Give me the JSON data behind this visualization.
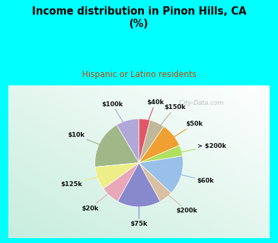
{
  "title": "Income distribution in Pinon Hills, CA\n(%)",
  "subtitle": "Hispanic or Latino residents",
  "background_cyan": "#00FFFF",
  "background_chart_color": "#c8eee0",
  "labels": [
    "$100k",
    "$10k",
    "$125k",
    "$20k",
    "$75k",
    "$200k",
    "$60k",
    "> $200k",
    "$50k",
    "$150k",
    "$40k"
  ],
  "values": [
    8.5,
    18.0,
    8.5,
    7.0,
    16.0,
    5.0,
    14.5,
    4.0,
    9.0,
    5.5,
    4.0
  ],
  "colors": [
    "#b0a8d8",
    "#a0b888",
    "#eeee88",
    "#e8a8b8",
    "#8888cc",
    "#d8c0a0",
    "#98c0e8",
    "#b0e060",
    "#f0a030",
    "#c0b898",
    "#e05868"
  ],
  "startangle": 90,
  "watermark": "  City-Data.com"
}
